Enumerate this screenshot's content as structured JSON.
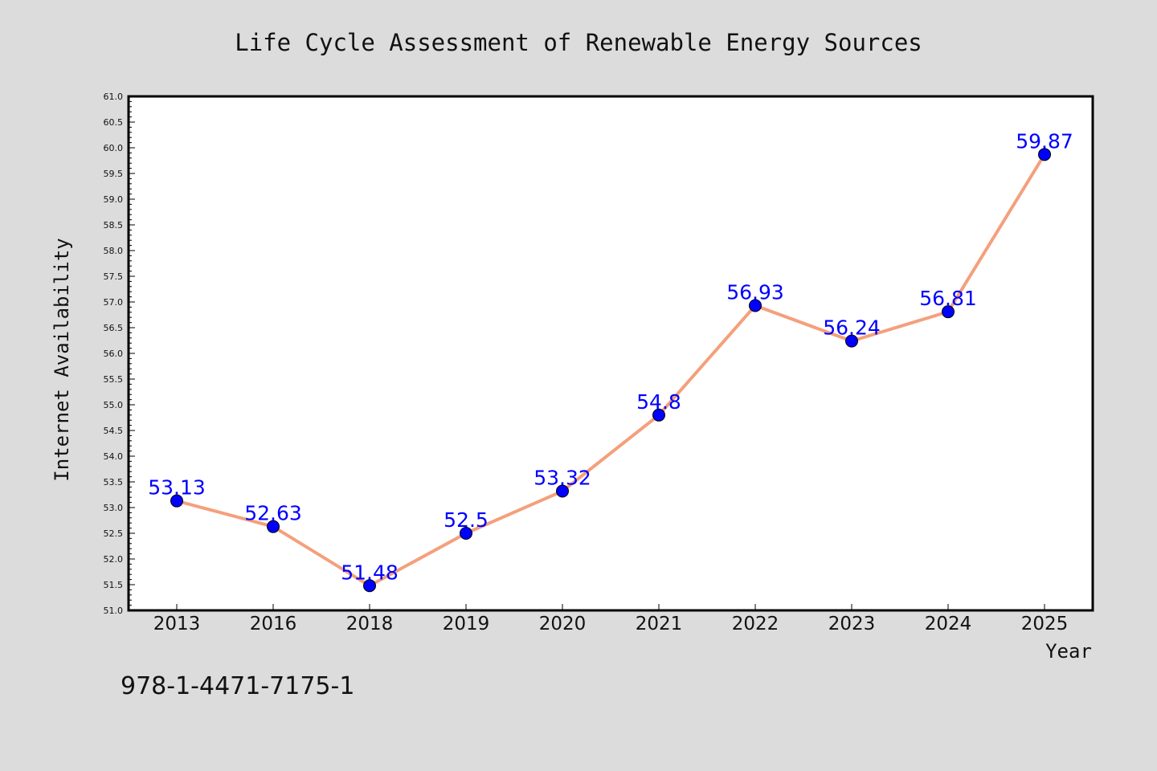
{
  "chart_data": {
    "type": "line",
    "title": "Life Cycle Assessment of Renewable Energy Sources",
    "xlabel": "Year",
    "ylabel": "Internet Availability",
    "categories": [
      "2013",
      "2016",
      "2018",
      "2019",
      "2020",
      "2021",
      "2022",
      "2023",
      "2024",
      "2025"
    ],
    "values": [
      53.13,
      52.63,
      51.48,
      52.5,
      53.32,
      54.8,
      56.93,
      56.24,
      56.81,
      59.87
    ],
    "data_labels": [
      "53.13",
      "52.63",
      "51.48",
      "52.5",
      "53.32",
      "54.8",
      "56.93",
      "56.24",
      "56.81",
      "59.87"
    ],
    "ylim": [
      51.0,
      61.0
    ],
    "yticks": [
      "51.0",
      "51.5",
      "52.0",
      "52.5",
      "53.0",
      "53.5",
      "54.0",
      "54.5",
      "55.0",
      "55.5",
      "56.0",
      "56.5",
      "57.0",
      "57.5",
      "58.0",
      "58.5",
      "59.0",
      "59.5",
      "60.0",
      "60.5",
      "61.0"
    ],
    "grid": false,
    "legend": "none",
    "line_color": "#f4a07c",
    "marker_color": "#0000ff",
    "label_color": "#0000ff"
  },
  "footnote": "978-1-4471-7175-1"
}
